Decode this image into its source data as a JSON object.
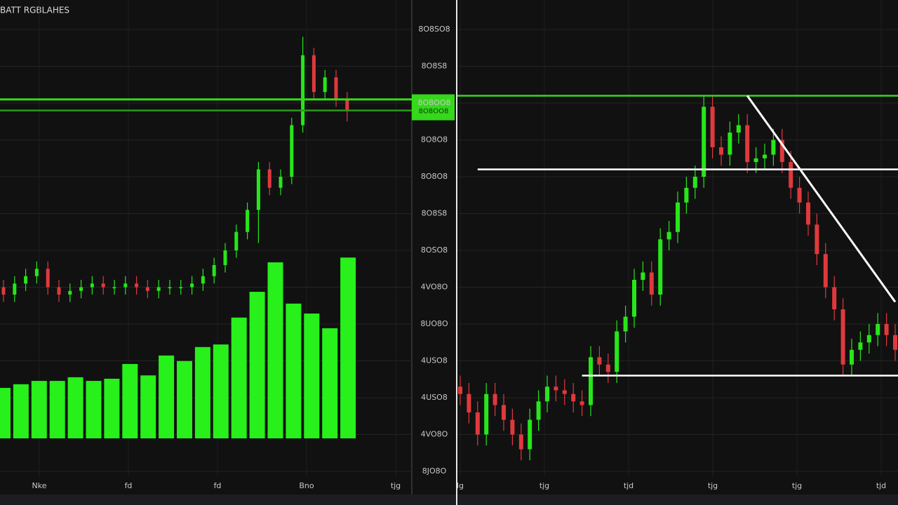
{
  "chart_data": [
    {
      "type": "candlestick",
      "title": "BATT RGBLAHES",
      "ylim": [
        0,
        12
      ],
      "up_color": "#27e61a",
      "down_color": "#e0393c",
      "open": [
        5.0,
        4.8,
        5.1,
        5.3,
        5.5,
        5.0,
        4.8,
        4.9,
        5.0,
        5.1,
        5.0,
        5.0,
        5.1,
        5.0,
        4.9,
        5.0,
        5.0,
        5.0,
        5.1,
        5.3,
        5.6,
        6.0,
        6.5,
        7.1,
        8.2,
        7.7,
        8.0,
        9.4,
        11.3,
        10.3,
        10.7,
        10.1
      ],
      "high": [
        5.2,
        5.3,
        5.5,
        5.7,
        5.7,
        5.2,
        5.1,
        5.2,
        5.3,
        5.3,
        5.2,
        5.3,
        5.3,
        5.2,
        5.2,
        5.2,
        5.2,
        5.3,
        5.5,
        5.8,
        6.2,
        6.7,
        7.3,
        8.4,
        8.4,
        8.2,
        9.6,
        11.8,
        11.5,
        10.9,
        10.9,
        10.3
      ],
      "low": [
        4.6,
        4.6,
        4.9,
        5.1,
        4.8,
        4.6,
        4.6,
        4.7,
        4.8,
        4.8,
        4.8,
        4.8,
        4.8,
        4.7,
        4.7,
        4.8,
        4.8,
        4.8,
        4.9,
        5.1,
        5.4,
        5.8,
        6.3,
        6.2,
        7.5,
        7.5,
        7.8,
        9.2,
        10.1,
        10.1,
        9.9,
        9.5
      ],
      "close": [
        4.8,
        5.1,
        5.3,
        5.5,
        5.0,
        4.8,
        4.9,
        5.0,
        5.1,
        5.0,
        5.0,
        5.1,
        5.0,
        4.9,
        5.0,
        5.0,
        5.0,
        5.1,
        5.3,
        5.6,
        6.0,
        6.5,
        7.1,
        8.2,
        7.7,
        8.0,
        9.4,
        11.3,
        10.3,
        10.7,
        10.1,
        9.8
      ],
      "volume": {
        "color": "#27f01a",
        "ylim": [
          0,
          10
        ],
        "values": [
          1.37,
          1.47,
          1.56,
          1.56,
          1.66,
          1.56,
          1.62,
          2.02,
          1.71,
          2.25,
          2.1,
          2.48,
          2.55,
          3.28,
          3.98,
          4.78,
          3.66,
          3.39,
          2.99,
          4.91
        ]
      },
      "lines": [
        {
          "value": 10.1,
          "color": "#35d81b"
        },
        {
          "value": 9.8,
          "color": "#2a9a1a"
        }
      ],
      "x_labels": [
        "Nke",
        "fd",
        "fd",
        "Bno",
        "tjg"
      ]
    },
    {
      "type": "candlestick",
      "ylim": [
        0,
        12
      ],
      "up_color": "#27e61a",
      "down_color": "#e0393c",
      "yticks": [
        {
          "value": 0,
          "label": "8JO8O"
        },
        {
          "value": 1,
          "label": "4VO8O"
        },
        {
          "value": 2,
          "label": "4USO8"
        },
        {
          "value": 3,
          "label": "4USO8"
        },
        {
          "value": 4,
          "label": "8UO8O"
        },
        {
          "value": 5,
          "label": "4VO8O"
        },
        {
          "value": 6,
          "label": "8OSO8"
        },
        {
          "value": 7,
          "label": "8O8S8"
        },
        {
          "value": 8,
          "label": "8O8O8"
        },
        {
          "value": 9,
          "label": "8O8O8"
        },
        {
          "value": 10,
          "label": "8O8OO8"
        },
        {
          "value": 11,
          "label": "8O8S8"
        },
        {
          "value": 12,
          "label": "8O8SO8"
        }
      ],
      "open": [
        2.3,
        2.1,
        1.6,
        1.0,
        2.1,
        1.8,
        1.4,
        1.0,
        0.6,
        1.4,
        1.9,
        2.3,
        2.2,
        2.1,
        1.9,
        1.8,
        3.1,
        2.9,
        2.7,
        3.8,
        4.2,
        5.2,
        5.4,
        4.8,
        6.3,
        6.5,
        7.3,
        7.7,
        8.0,
        9.9,
        8.8,
        8.6,
        9.2,
        9.4,
        8.4,
        8.5,
        8.6,
        9.0,
        8.4,
        7.7,
        7.3,
        6.7,
        5.9,
        5.0,
        4.4,
        2.9,
        3.3,
        3.5,
        3.7,
        4.0,
        3.7
      ],
      "high": [
        2.6,
        2.4,
        1.9,
        2.4,
        2.4,
        2.1,
        1.7,
        1.3,
        1.7,
        2.2,
        2.6,
        2.6,
        2.5,
        2.4,
        2.2,
        3.4,
        3.4,
        3.2,
        4.1,
        4.5,
        5.5,
        5.7,
        5.7,
        6.6,
        6.8,
        7.6,
        8.0,
        8.3,
        10.2,
        10.2,
        9.1,
        9.5,
        9.7,
        9.7,
        8.8,
        8.9,
        9.3,
        9.3,
        8.7,
        8.0,
        7.6,
        7.0,
        6.2,
        5.3,
        4.7,
        3.6,
        3.8,
        4.0,
        4.3,
        4.3,
        4.0
      ],
      "low": [
        1.8,
        1.3,
        0.7,
        0.7,
        1.5,
        1.1,
        0.7,
        0.3,
        0.3,
        1.1,
        1.6,
        1.9,
        1.8,
        1.6,
        1.5,
        1.5,
        2.6,
        2.4,
        2.4,
        3.5,
        3.9,
        4.9,
        4.5,
        4.5,
        6.0,
        6.2,
        7.0,
        7.4,
        7.7,
        8.5,
        8.3,
        8.3,
        8.9,
        8.1,
        8.1,
        8.2,
        8.3,
        8.1,
        7.4,
        7.0,
        6.4,
        5.6,
        4.7,
        4.1,
        2.6,
        2.6,
        3.0,
        3.2,
        3.4,
        3.4,
        3.0
      ],
      "close": [
        2.1,
        1.6,
        1.0,
        2.1,
        1.8,
        1.4,
        1.0,
        0.6,
        1.4,
        1.9,
        2.3,
        2.2,
        2.1,
        1.9,
        1.8,
        3.1,
        2.9,
        2.7,
        3.8,
        4.2,
        5.2,
        5.4,
        4.8,
        6.3,
        6.5,
        7.3,
        7.7,
        8.0,
        9.9,
        8.8,
        8.6,
        9.2,
        9.4,
        8.4,
        8.5,
        8.6,
        9.0,
        8.4,
        7.7,
        7.3,
        6.7,
        5.9,
        5.0,
        4.4,
        2.9,
        3.3,
        3.5,
        3.7,
        4.0,
        3.7,
        3.3
      ],
      "lines": [
        {
          "value": 10.2,
          "color": "#35d81b",
          "label": "8O8OO8"
        },
        {
          "value": 8.2,
          "color": "#ffffff",
          "from": 2
        },
        {
          "value": 2.6,
          "color": "#ffffff",
          "from": 14
        }
      ],
      "trend": {
        "from": 33,
        "to": 50,
        "start": 10.2,
        "end": 4.6,
        "color": "#ffffff"
      },
      "x_labels": [
        "lg",
        "tjg",
        "tjd",
        "tjg",
        "tjg",
        "tjd"
      ]
    }
  ]
}
